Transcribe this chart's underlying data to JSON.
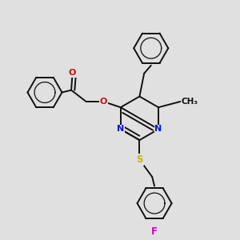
{
  "bg_color": "#e0e0e0",
  "bond_color": "#111111",
  "bond_width": 1.4,
  "atom_colors": {
    "N": "#1010cc",
    "O": "#cc1010",
    "S": "#bbbb00",
    "F": "#cc00cc",
    "C": "#111111"
  },
  "figsize": [
    3.0,
    3.0
  ],
  "dpi": 100,
  "xlim": [
    0.0,
    1.0
  ],
  "ylim": [
    0.0,
    1.0
  ]
}
